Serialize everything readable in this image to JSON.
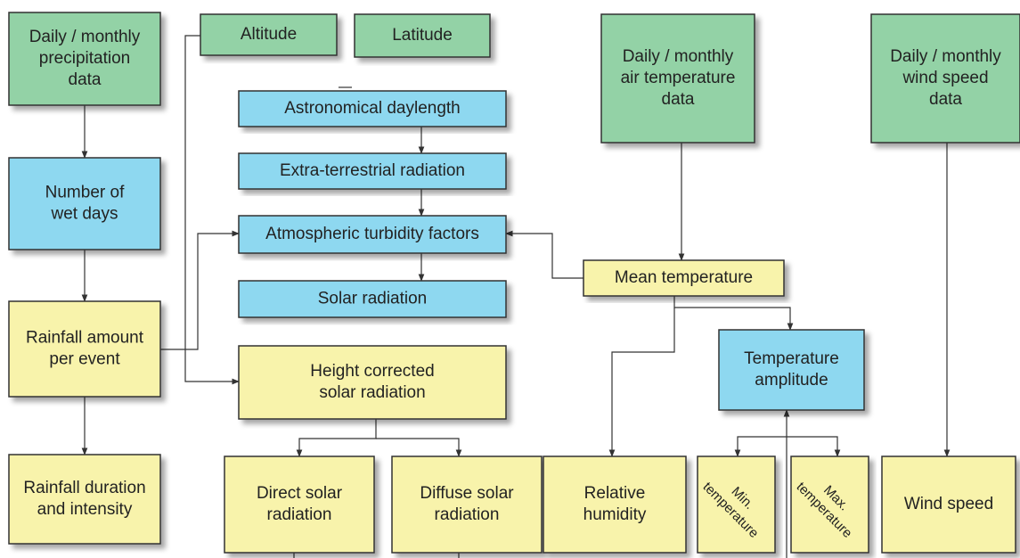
{
  "nodes": [
    {
      "label": [
        "Daily / monthly",
        "precipitation",
        "data"
      ]
    },
    {
      "label": [
        "Altitude"
      ]
    },
    {
      "label": [
        "Latitude"
      ]
    },
    {
      "label": [
        "Daily / monthly",
        "air temperature",
        "data"
      ]
    },
    {
      "label": [
        "Daily / monthly",
        "wind speed",
        "data"
      ]
    },
    {
      "label": [
        "Astronomical daylength"
      ]
    },
    {
      "label": [
        "Extra-terrestrial radiation"
      ]
    },
    {
      "label": [
        "Atmospheric turbidity factors"
      ]
    },
    {
      "label": [
        "Solar radiation"
      ]
    },
    {
      "label": [
        "Number of",
        "wet days"
      ]
    },
    {
      "label": [
        "Rainfall amount",
        "per event"
      ]
    },
    {
      "label": [
        "Mean temperature"
      ]
    },
    {
      "label": [
        "Height corrected",
        "solar radiation"
      ]
    },
    {
      "label": [
        "Temperature",
        "amplitude"
      ]
    },
    {
      "label": [
        "Rainfall duration",
        "and intensity"
      ]
    },
    {
      "label": [
        "Direct solar",
        "radiation"
      ]
    },
    {
      "label": [
        "Diffuse solar",
        "radiation"
      ]
    },
    {
      "label": [
        "Relative",
        "humidity"
      ]
    },
    {
      "label": [
        "Min.",
        "temperature"
      ]
    },
    {
      "label": [
        "Max.",
        "temperature"
      ]
    },
    {
      "label": [
        "Wind speed"
      ]
    }
  ]
}
